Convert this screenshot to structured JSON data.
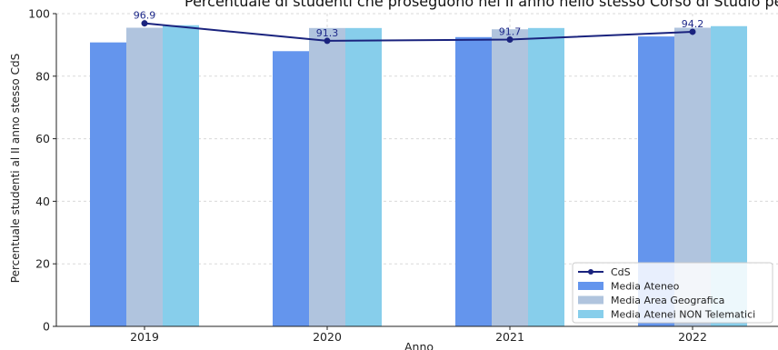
{
  "chart_data": {
    "type": "bar",
    "title": "Percentuale di studenti che proseguono nel II anno nello stesso Corso di Studio per anno",
    "xlabel": "Anno",
    "ylabel": "Percentuale studenti al II anno stesso CdS",
    "categories": [
      "2019",
      "2020",
      "2021",
      "2022"
    ],
    "ylim": [
      0,
      100
    ],
    "yticks": [
      0,
      20,
      40,
      60,
      80,
      100
    ],
    "grid": true,
    "legend_position": "bottom-right",
    "bar_series": [
      {
        "name": "Media Ateneo",
        "color": "#6495ED",
        "values": [
          90.8,
          88.0,
          92.5,
          92.7
        ]
      },
      {
        "name": "Media Area Geografica",
        "color": "#B0C4DE",
        "values": [
          95.5,
          95.4,
          95.0,
          95.5
        ]
      },
      {
        "name": "Media Atenei NON Telematici",
        "color": "#87CEEB",
        "values": [
          96.3,
          95.4,
          95.4,
          96.0
        ]
      }
    ],
    "line_series": {
      "name": "CdS",
      "color": "#1a237e",
      "values": [
        96.9,
        91.3,
        91.7,
        94.2
      ],
      "labels": [
        "96.9",
        "91.3",
        "91.7",
        "94.2"
      ]
    }
  }
}
